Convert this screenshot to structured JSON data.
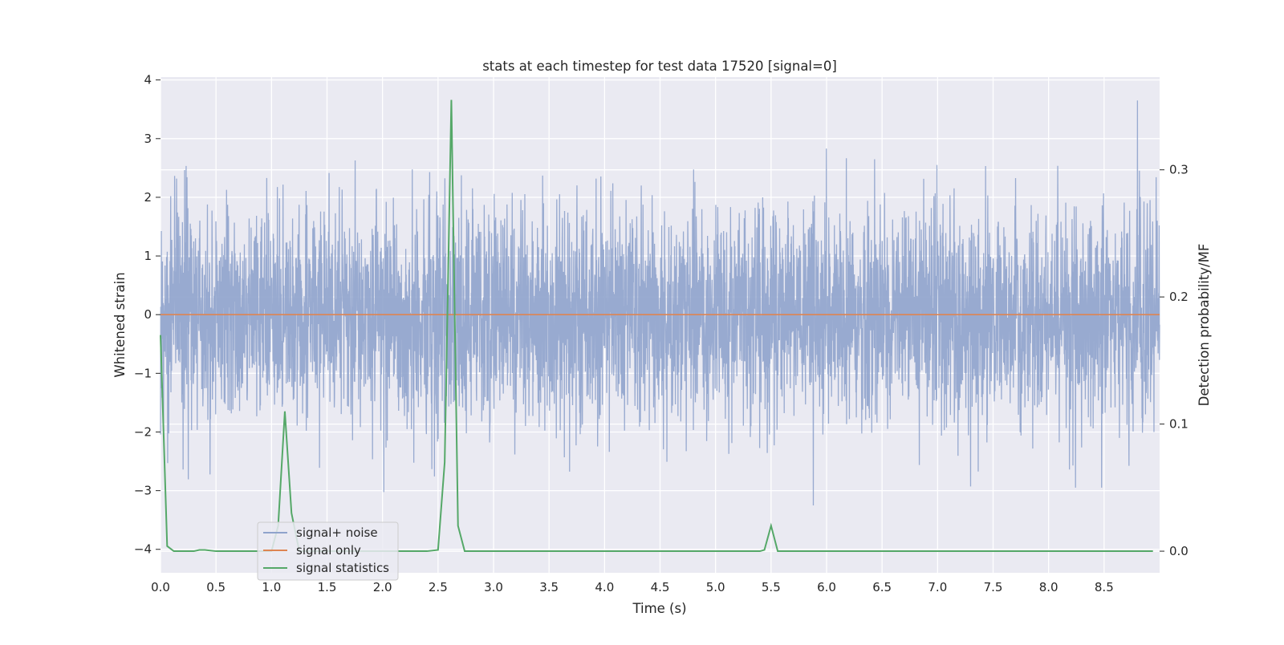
{
  "chart_data": {
    "type": "line",
    "title": "stats at each timestep for test data 17520 [signal=0]",
    "xlabel": "Time (s)",
    "ylabel_left": "Whitened strain",
    "ylabel_right": "Detection probability/MF",
    "xlim": [
      0.0,
      9.0
    ],
    "ylim_left": [
      -4.4,
      4.05
    ],
    "ylim_right": [
      -0.017,
      0.373
    ],
    "xticks": [
      "0.0",
      "0.5",
      "1.0",
      "1.5",
      "2.0",
      "2.5",
      "3.0",
      "3.5",
      "4.0",
      "4.5",
      "5.0",
      "5.5",
      "6.0",
      "6.5",
      "7.0",
      "7.5",
      "8.0",
      "8.5"
    ],
    "yticks_left": [
      "4",
      "3",
      "2",
      "1",
      "0",
      "−1",
      "−2",
      "−3",
      "−4"
    ],
    "yticks_right": [
      "0.3",
      "0.2",
      "0.1",
      "0.0"
    ],
    "grid": true,
    "legend_position": "lower-left",
    "colors": {
      "background": "#eaeaf2",
      "grid": "#ffffff",
      "noise": "#8fa3cc",
      "signal_only": "#dd8452",
      "statistics": "#55a868"
    },
    "series": [
      {
        "name": "signal+ noise",
        "axis": "left",
        "kind": "noise",
        "approx_std": 0.9,
        "approx_max": 3.65,
        "approx_min": -4.0,
        "x_range": [
          0.0,
          9.0
        ]
      },
      {
        "name": "signal only",
        "axis": "left",
        "x": [
          0.0,
          9.0
        ],
        "y": [
          0.0,
          0.0
        ]
      },
      {
        "name": "signal statistics",
        "axis": "right",
        "x": [
          0.0,
          0.06,
          0.12,
          0.18,
          0.25,
          0.3,
          0.35,
          0.4,
          0.5,
          0.6,
          0.8,
          1.0,
          1.06,
          1.12,
          1.18,
          1.25,
          1.4,
          1.6,
          1.8,
          2.0,
          2.2,
          2.4,
          2.5,
          2.56,
          2.62,
          2.68,
          2.74,
          2.8,
          3.0,
          3.5,
          4.0,
          4.5,
          5.0,
          5.3,
          5.4,
          5.44,
          5.5,
          5.56,
          5.62,
          6.0,
          7.0,
          8.0,
          8.94
        ],
        "y": [
          0.17,
          0.004,
          0.0,
          0.0,
          0.0,
          0.0,
          0.001,
          0.001,
          0.0,
          0.0,
          0.0,
          0.0,
          0.02,
          0.11,
          0.03,
          0.0,
          0.0,
          0.0,
          0.0,
          0.0,
          0.0,
          0.0,
          0.001,
          0.07,
          0.355,
          0.02,
          0.0,
          0.0,
          0.0,
          0.0,
          0.0,
          0.0,
          0.0,
          0.0,
          0.0,
          0.001,
          0.02,
          0.0,
          0.0,
          0.0,
          0.0,
          0.0,
          0.0
        ]
      }
    ]
  }
}
